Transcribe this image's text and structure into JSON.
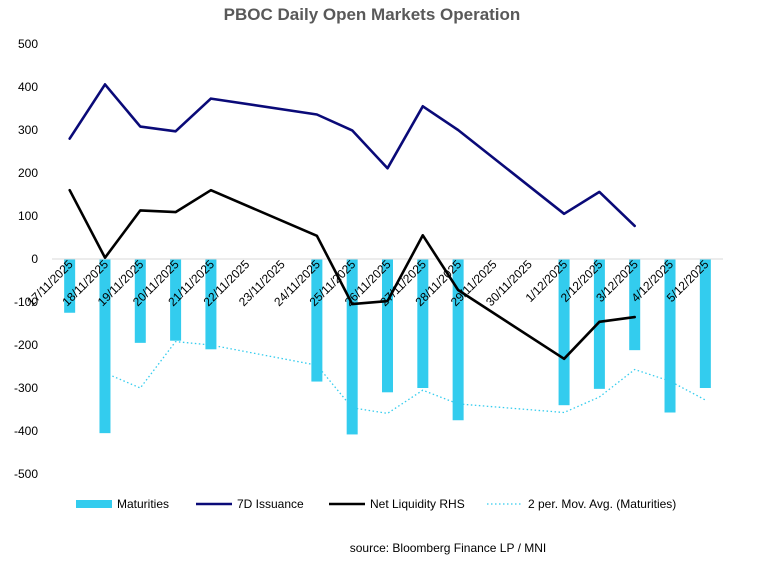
{
  "chart_data": {
    "type": "bar",
    "title": "PBOC Daily Open Markets Operation",
    "source": "source:  Bloomberg Finance LP / MNI",
    "ylim": [
      -500,
      500
    ],
    "yticks": [
      500,
      400,
      300,
      200,
      100,
      0,
      -100,
      -200,
      -300,
      -400,
      -500
    ],
    "grid": false,
    "legend_position": "bottom",
    "categories": [
      "17/11/2025",
      "18/11/2025",
      "19/11/2025",
      "20/11/2025",
      "21/11/2025",
      "22/11/2025",
      "23/11/2025",
      "24/11/2025",
      "25/11/2025",
      "26/11/2025",
      "27/11/2025",
      "28/11/2025",
      "29/11/2025",
      "30/11/2025",
      "1/12/2025",
      "2/12/2025",
      "3/12/2025",
      "4/12/2025",
      "5/12/2025"
    ],
    "series": [
      {
        "name": "Maturities",
        "type": "bar",
        "color": "#33CCEE",
        "values": [
          -125,
          -405,
          -195,
          -190,
          -210,
          null,
          null,
          -285,
          -408,
          -310,
          -300,
          -375,
          null,
          null,
          -340,
          -302,
          -212,
          -357,
          -300
        ]
      },
      {
        "name": "7D Issuance",
        "type": "line",
        "color": "#0A0A78",
        "values": [
          280,
          406,
          308,
          297,
          373,
          null,
          null,
          336,
          299,
          211,
          355,
          300,
          null,
          null,
          105,
          156,
          77,
          null,
          null
        ]
      },
      {
        "name": "Net Liquidity RHS",
        "type": "line",
        "color": "#000000",
        "values": [
          160,
          3,
          113,
          109,
          160,
          null,
          null,
          54,
          -105,
          -98,
          55,
          -72,
          null,
          null,
          -232,
          -146,
          -135,
          null,
          null
        ]
      },
      {
        "name": "2 per. Mov. Avg. (Maturities)",
        "type": "line",
        "style": "dotted",
        "color": "#33CCEE",
        "values": [
          null,
          -265,
          -300,
          -192,
          -200,
          null,
          null,
          -247,
          -346,
          -359,
          -305,
          -337,
          null,
          null,
          -357,
          -321,
          -257,
          -284,
          -328
        ]
      }
    ]
  }
}
